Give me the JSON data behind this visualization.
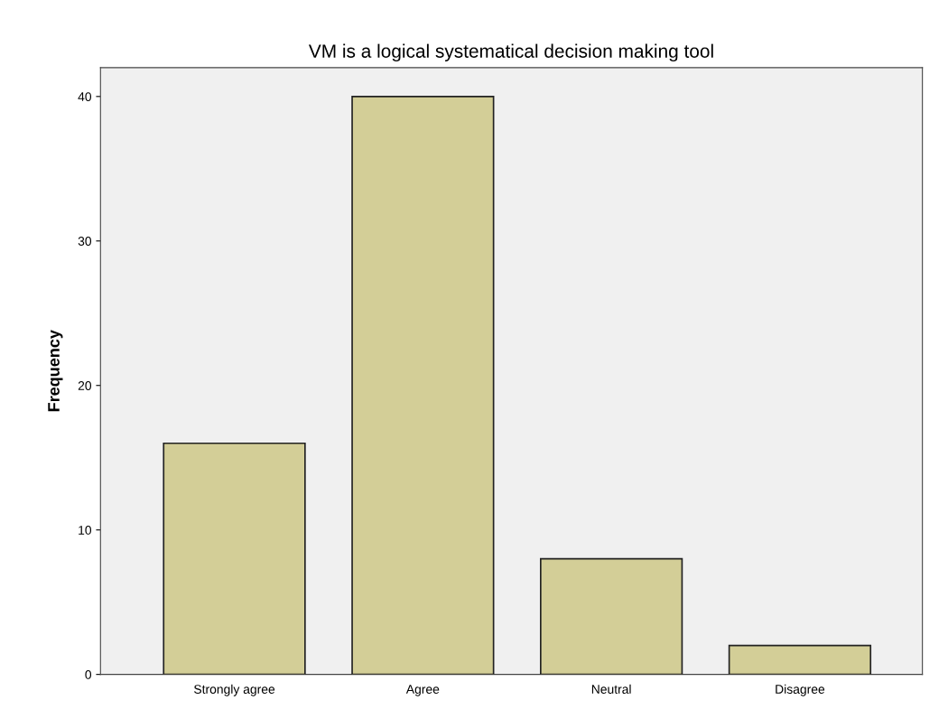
{
  "chart_data": {
    "type": "bar",
    "title": "VM is a logical systematical decision making tool",
    "ylabel": "Frequency",
    "categories": [
      "Strongly agree",
      "Agree",
      "Neutral",
      "Disagree"
    ],
    "values": [
      16,
      40,
      8,
      2
    ],
    "color": "#d3ce97",
    "ylim": [
      0,
      42
    ],
    "yticks": [
      0,
      10,
      20,
      30,
      40
    ],
    "grid": false,
    "legend": false
  }
}
